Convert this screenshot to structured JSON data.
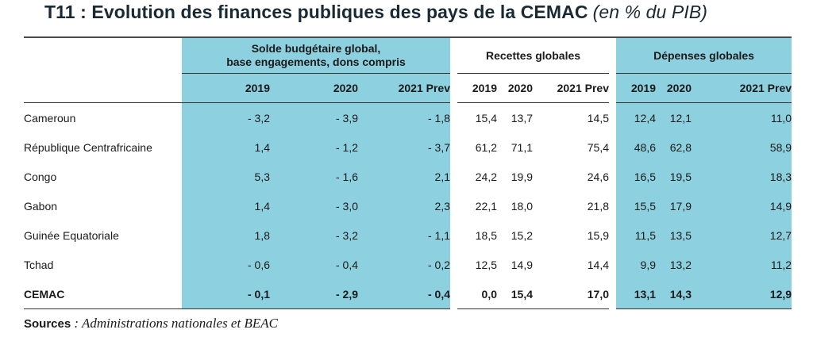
{
  "title": "T11 : Evolution des finances publiques des pays de la CEMAC",
  "subtitle": "(en % du PIB)",
  "groups": [
    "Solde budgétaire global,\nbase engagements, dons compris",
    "Recettes globales",
    "Dépenses globales"
  ],
  "years": [
    "2019",
    "2020",
    "2021 Prev"
  ],
  "rows": [
    {
      "label": "Cameroun",
      "values": [
        "- 3,2",
        "- 3,9",
        "- 1,8",
        "15,4",
        "13,7",
        "14,5",
        "12,4",
        "12,1",
        "11,0"
      ]
    },
    {
      "label": "République Centrafricaine",
      "values": [
        "1,4",
        "- 1,2",
        "- 3,7",
        "61,2",
        "71,1",
        "75,4",
        "48,6",
        "62,8",
        "58,9"
      ]
    },
    {
      "label": "Congo",
      "values": [
        "5,3",
        "- 1,6",
        "2,1",
        "24,2",
        "19,9",
        "24,6",
        "16,5",
        "19,5",
        "18,3"
      ]
    },
    {
      "label": "Gabon",
      "values": [
        "1,4",
        "- 3,0",
        "2,3",
        "22,1",
        "18,0",
        "21,8",
        "15,5",
        "17,9",
        "14,9"
      ]
    },
    {
      "label": "Guinée Equatoriale",
      "values": [
        "1,8",
        "- 3,2",
        "- 1,1",
        "18,5",
        "15,2",
        "15,9",
        "11,5",
        "13,5",
        "12,7"
      ]
    },
    {
      "label": "Tchad",
      "values": [
        "- 0,6",
        "- 0,4",
        "- 0,2",
        "12,5",
        "14,9",
        "14,4",
        "9,9",
        "13,2",
        "11,2"
      ]
    },
    {
      "label": "CEMAC",
      "values": [
        "- 0,1",
        "- 2,9",
        "- 0,4",
        "0,0",
        "15,4",
        "17,0",
        "13,1",
        "14,3",
        "12,9"
      ]
    }
  ],
  "sources": {
    "label": "Sources",
    "text": ": Administrations nationales et BEAC"
  }
}
